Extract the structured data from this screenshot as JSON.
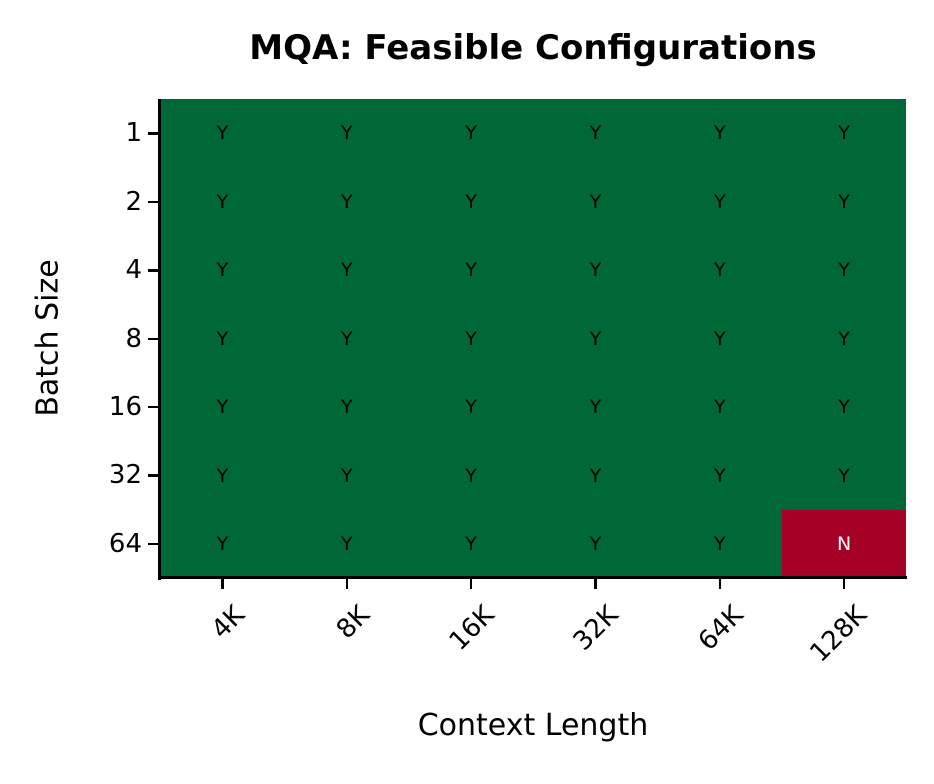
{
  "chart_data": {
    "type": "heatmap",
    "title": "MQA: Feasible Configurations",
    "xlabel": "Context Length",
    "ylabel": "Batch Size",
    "x_categories": [
      "4K",
      "8K",
      "16K",
      "32K",
      "64K",
      "128K"
    ],
    "y_categories": [
      "1",
      "2",
      "4",
      "8",
      "16",
      "32",
      "64"
    ],
    "values": [
      [
        "Y",
        "Y",
        "Y",
        "Y",
        "Y",
        "Y"
      ],
      [
        "Y",
        "Y",
        "Y",
        "Y",
        "Y",
        "Y"
      ],
      [
        "Y",
        "Y",
        "Y",
        "Y",
        "Y",
        "Y"
      ],
      [
        "Y",
        "Y",
        "Y",
        "Y",
        "Y",
        "Y"
      ],
      [
        "Y",
        "Y",
        "Y",
        "Y",
        "Y",
        "Y"
      ],
      [
        "Y",
        "Y",
        "Y",
        "Y",
        "Y",
        "Y"
      ],
      [
        "Y",
        "Y",
        "Y",
        "Y",
        "Y",
        "N"
      ]
    ],
    "colors": {
      "Y": "#006837",
      "N": "#a50026"
    },
    "text_colors": {
      "Y": "#000000",
      "N": "#ffffff"
    },
    "grid": false
  }
}
